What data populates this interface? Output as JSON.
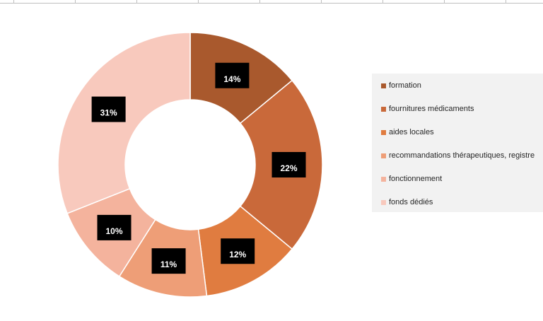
{
  "chart_data": {
    "type": "pie",
    "donut": true,
    "categories": [
      "formation",
      "fournitures médicaments",
      "aides locales",
      "recommandations thérapeutiques, registre",
      "fonctionnement",
      "fonds dédiés"
    ],
    "values": [
      14,
      22,
      12,
      11,
      10,
      31
    ],
    "labels": [
      "14%",
      "22%",
      "12%",
      "11%",
      "10%",
      "31%"
    ],
    "colors": [
      "#a9592d",
      "#c9693a",
      "#e07c40",
      "#ee9e77",
      "#f4b39d",
      "#f8c9bd"
    ],
    "title": "",
    "legend_position": "right"
  }
}
